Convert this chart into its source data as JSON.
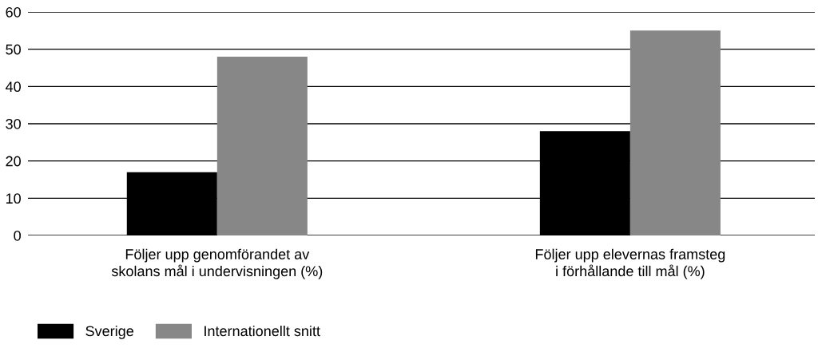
{
  "chart_data": {
    "type": "bar",
    "categories": [
      "Följer upp genomförandet av\nskolans mål i undervisningen (%)",
      "Följer upp elevernas framsteg\ni förhållande till mål (%)"
    ],
    "series": [
      {
        "name": "Sverige",
        "color": "#000000",
        "values": [
          17,
          28
        ]
      },
      {
        "name": "Internationellt snitt",
        "color": "#878787",
        "values": [
          48,
          55
        ]
      }
    ],
    "ylim": [
      0,
      60
    ],
    "yticks": [
      0,
      10,
      20,
      30,
      40,
      50,
      60
    ],
    "grid": "y",
    "legend": "bottom left"
  }
}
